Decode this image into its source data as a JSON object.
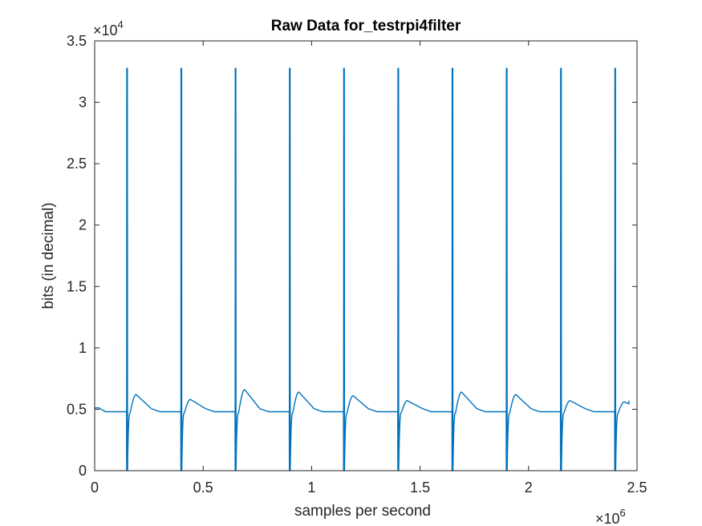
{
  "chart_data": {
    "type": "line",
    "title": "Raw Data for_testrpi4filter",
    "xlabel": "samples per second",
    "ylabel": "bits (in decimal)",
    "xlim": [
      0,
      2500000
    ],
    "ylim": [
      0,
      35000
    ],
    "x_ticks": [
      0,
      500000,
      1000000,
      1500000,
      2000000,
      2500000
    ],
    "x_tick_labels": [
      "0",
      "0.5",
      "1",
      "1.5",
      "2",
      "2.5"
    ],
    "y_ticks": [
      0,
      5000,
      10000,
      15000,
      20000,
      25000,
      30000,
      35000
    ],
    "y_tick_labels": [
      "0",
      "0.5",
      "1",
      "1.5",
      "2",
      "2.5",
      "3",
      "3.5"
    ],
    "x_exponent": {
      "base": "×10",
      "power": "6"
    },
    "y_exponent": {
      "base": "×10",
      "power": "4"
    },
    "grid": false,
    "box": true,
    "series": [
      {
        "color": "#0072BD",
        "baseline": 4800,
        "saturation_level": 32767,
        "spike_positions": [
          150000,
          400000,
          650000,
          900000,
          1150000,
          1400000,
          1650000,
          1900000,
          2150000,
          2400000
        ],
        "spike_peak_dips": [
          29800,
          30200,
          29800,
          30400,
          30600,
          32700,
          30200,
          29800,
          32700,
          32700
        ],
        "bump_peaks": [
          6200,
          5800,
          6600,
          6400,
          6100,
          5700,
          6400,
          6200,
          5700,
          5600
        ],
        "start_value": 5100,
        "end_value": 5700
      }
    ]
  }
}
